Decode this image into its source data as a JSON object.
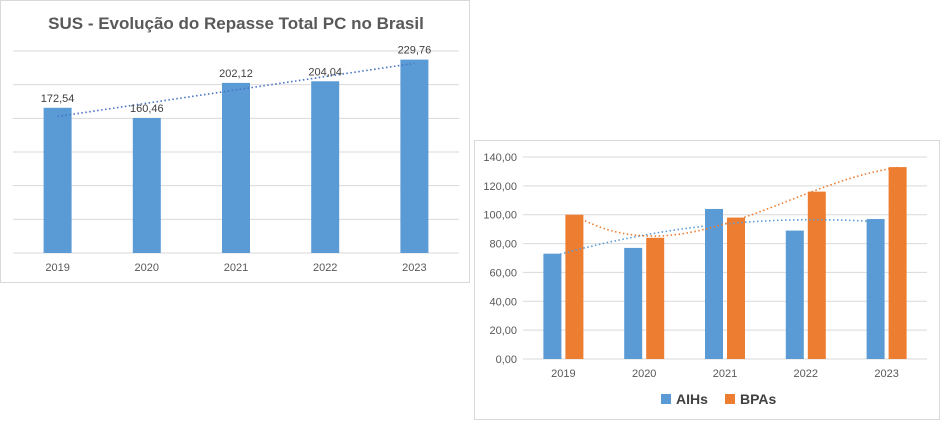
{
  "chart_data": [
    {
      "type": "bar",
      "title": "SUS - Evolução do Repasse Total PC no Brasil",
      "categories": [
        "2019",
        "2020",
        "2021",
        "2022",
        "2023"
      ],
      "values": [
        172.54,
        160.46,
        202.12,
        204.04,
        229.76
      ],
      "data_labels": [
        "172,54",
        "160,46",
        "202,12",
        "204,04",
        "229,76"
      ],
      "ylim": [
        0,
        240
      ],
      "y_axis_visible": false,
      "grid": true,
      "trendline": "linear",
      "colors": {
        "bar": "#5b9bd5",
        "trend": "#4472c4",
        "grid": "#d9d9d9"
      }
    },
    {
      "type": "bar",
      "categories": [
        "2019",
        "2020",
        "2021",
        "2022",
        "2023"
      ],
      "series": [
        {
          "name": "AIHs",
          "values": [
            73,
            77,
            104,
            89,
            97
          ],
          "color": "#5b9bd5",
          "trendline": "polynomial"
        },
        {
          "name": "BPAs",
          "values": [
            100,
            84,
            98,
            116,
            133
          ],
          "color": "#ed7d31",
          "trendline": "polynomial"
        }
      ],
      "ylim": [
        0,
        140
      ],
      "yticks": [
        "0,00",
        "20,00",
        "40,00",
        "60,00",
        "80,00",
        "100,00",
        "120,00",
        "140,00"
      ],
      "grid": true,
      "legend": "bottom"
    }
  ]
}
